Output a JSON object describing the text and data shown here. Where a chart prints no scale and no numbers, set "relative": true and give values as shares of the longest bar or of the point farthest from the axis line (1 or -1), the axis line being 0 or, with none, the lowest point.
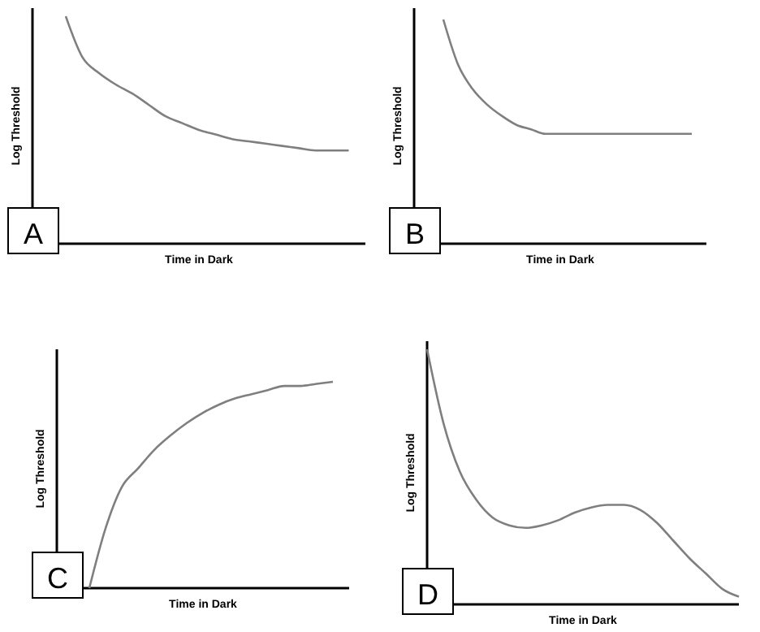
{
  "chart_data": [
    {
      "type": "line",
      "relative": true,
      "xlabel": "Time in Dark",
      "ylabel": "Log Threshold",
      "annotations": [
        "A"
      ],
      "color": "#7f7f7f",
      "categories": [
        null,
        null,
        null,
        null,
        null,
        null,
        null,
        null,
        null,
        null,
        null,
        null,
        null,
        null,
        null,
        null,
        null,
        null,
        null,
        null,
        null
      ],
      "values": [
        null,
        null,
        1.0,
        0.82,
        0.75,
        0.7,
        0.66,
        0.61,
        0.56,
        0.53,
        0.5,
        0.48,
        0.46,
        0.45,
        0.44,
        0.43,
        0.42,
        0.41,
        0.41,
        0.41,
        null
      ]
    },
    {
      "type": "line",
      "relative": true,
      "xlabel": "Time in Dark",
      "ylabel": "Log Threshold",
      "annotations": [
        "B"
      ],
      "color": "#7f7f7f",
      "categories": [
        null,
        null,
        null,
        null,
        null,
        null,
        null,
        null,
        null,
        null,
        null,
        null,
        null,
        null,
        null,
        null,
        null,
        null,
        null,
        null,
        null
      ],
      "values": [
        null,
        null,
        1.0,
        0.8,
        0.69,
        0.62,
        0.57,
        0.53,
        0.51,
        0.49,
        0.49,
        0.49,
        0.49,
        0.49,
        0.49,
        0.49,
        0.49,
        0.49,
        0.49,
        0.49,
        null
      ]
    },
    {
      "type": "line",
      "relative": true,
      "xlabel": "Time in Dark",
      "ylabel": "Log Threshold",
      "annotations": [
        "C"
      ],
      "color": "#7f7f7f",
      "categories": [
        null,
        null,
        null,
        null,
        null,
        null,
        null,
        null,
        null,
        null,
        null,
        null,
        null,
        null,
        null,
        null,
        null,
        null,
        null
      ],
      "values": [
        null,
        null,
        0,
        0.29,
        0.49,
        0.58,
        0.67,
        0.74,
        0.8,
        0.85,
        0.89,
        0.92,
        0.94,
        0.96,
        0.98,
        0.98,
        0.99,
        1.0,
        null
      ]
    },
    {
      "type": "line",
      "relative": true,
      "xlabel": "Time in Dark",
      "ylabel": "Log Threshold",
      "annotations": [
        "D"
      ],
      "color": "#7f7f7f",
      "categories": [
        null,
        null,
        null,
        null,
        null,
        null,
        null,
        null,
        null,
        null,
        null,
        null,
        null,
        null,
        null,
        null,
        null,
        null,
        null,
        null
      ],
      "values": [
        1.0,
        0.71,
        0.52,
        0.41,
        0.34,
        0.31,
        0.3,
        0.31,
        0.33,
        0.36,
        0.38,
        0.39,
        0.39,
        0.37,
        0.32,
        0.25,
        0.18,
        0.12,
        0.06,
        0.03
      ]
    }
  ]
}
